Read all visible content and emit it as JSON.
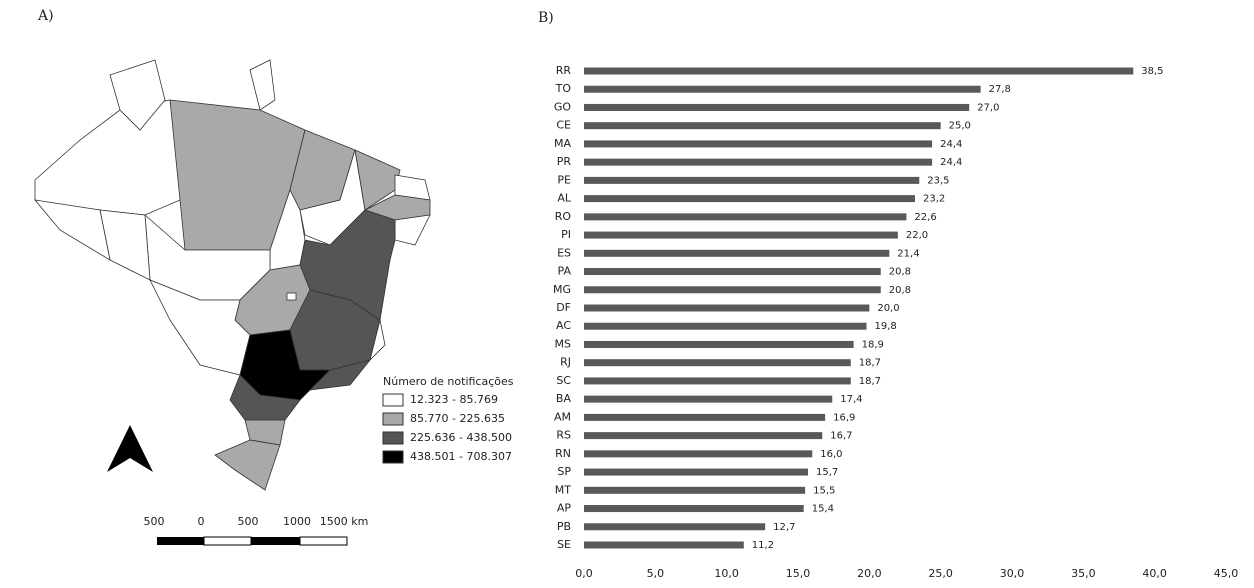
{
  "map": {
    "panel_label": "A)",
    "legend_title": "Número de notificações",
    "legend": [
      {
        "label": "12.323 - 85.769",
        "color": "#ffffff"
      },
      {
        "label": "85.770 - 225.635",
        "color": "#a9a9a9"
      },
      {
        "label": "225.636 - 438.500",
        "color": "#555555"
      },
      {
        "label": "438.501 - 708.307",
        "color": "#000000"
      }
    ],
    "scale_labels": [
      "500",
      "0",
      "500",
      "1000",
      "1500 km"
    ]
  },
  "chart_data": {
    "type": "hbar",
    "panel_label": "B)",
    "categories": [
      "RR",
      "TO",
      "GO",
      "CE",
      "MA",
      "PR",
      "PE",
      "AL",
      "RO",
      "PI",
      "ES",
      "PA",
      "MG",
      "DF",
      "AC",
      "MS",
      "RJ",
      "SC",
      "BA",
      "AM",
      "RS",
      "RN",
      "SP",
      "MT",
      "AP",
      "PB",
      "SE"
    ],
    "values": [
      38.5,
      27.8,
      27.0,
      25.0,
      24.4,
      24.4,
      23.5,
      23.2,
      22.6,
      22.0,
      21.4,
      20.8,
      20.8,
      20.0,
      19.8,
      18.9,
      18.7,
      18.7,
      17.4,
      16.9,
      16.7,
      16.0,
      15.7,
      15.5,
      15.4,
      12.7,
      11.2
    ],
    "value_labels": [
      "38,5",
      "27,8",
      "27,0",
      "25,0",
      "24,4",
      "24,4",
      "23,5",
      "23,2",
      "22,6",
      "22,0",
      "21,4",
      "20,8",
      "20,8",
      "20,0",
      "19,8",
      "18,9",
      "18,7",
      "18,7",
      "17,4",
      "16,9",
      "16,7",
      "16,0",
      "15,7",
      "15,5",
      "15,4",
      "12,7",
      "11,2"
    ],
    "color": "#595959",
    "xlim": [
      0,
      45
    ],
    "xticks": [
      {
        "value": 0,
        "label": "0,0"
      },
      {
        "value": 5,
        "label": "5,0"
      },
      {
        "value": 10,
        "label": "10,0"
      },
      {
        "value": 15,
        "label": "15,0"
      },
      {
        "value": 20,
        "label": "20,0"
      },
      {
        "value": 25,
        "label": "25,0"
      },
      {
        "value": 30,
        "label": "30,0"
      },
      {
        "value": 35,
        "label": "35,0"
      },
      {
        "value": 40,
        "label": "40,0"
      },
      {
        "value": 45,
        "label": "45,0"
      }
    ]
  }
}
